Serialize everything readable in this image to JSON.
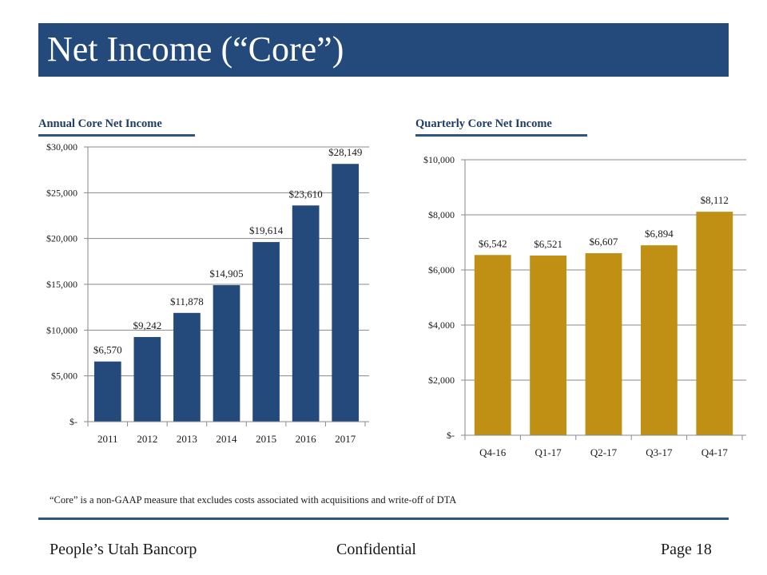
{
  "page": {
    "title": "Net Income (“Core”)",
    "footnote": "“Core” is a non-GAAP measure that excludes costs associated with acquisitions and write-off of DTA",
    "footer": {
      "company": "People’s Utah Bancorp",
      "classification": "Confidential",
      "page_label": "Page 18"
    },
    "colors": {
      "title_bar": "#234a7b",
      "annual_bars": "#234a7b",
      "quarterly_bars": "#bf9013",
      "rule": "#2e5580"
    }
  },
  "chart_data": [
    {
      "type": "bar",
      "title": "Annual  Core Net Income",
      "categories": [
        "2011",
        "2012",
        "2013",
        "2014",
        "2015",
        "2016",
        "2017"
      ],
      "values": [
        6570,
        9242,
        11878,
        14905,
        19614,
        23610,
        28149
      ],
      "data_labels": [
        "$6,570",
        "$9,242",
        "$11,878",
        "$14,905",
        "$19,614",
        "$23,610",
        "$28,149"
      ],
      "xlabel": "",
      "ylabel": "",
      "ylim": [
        0,
        30000
      ],
      "yticks": [
        0,
        5000,
        10000,
        15000,
        20000,
        25000,
        30000
      ],
      "ytick_labels": [
        "$-",
        "$5,000",
        "$10,000",
        "$15,000",
        "$20,000",
        "$25,000",
        "$30,000"
      ],
      "grid": true,
      "legend": "none",
      "color": "#234a7b"
    },
    {
      "type": "bar",
      "title": "Quarterly Core Net Income",
      "categories": [
        "Q4-16",
        "Q1-17",
        "Q2-17",
        "Q3-17",
        "Q4-17"
      ],
      "values": [
        6542,
        6521,
        6607,
        6894,
        8112
      ],
      "data_labels": [
        "$6,542",
        "$6,521",
        "$6,607",
        "$6,894",
        "$8,112"
      ],
      "xlabel": "",
      "ylabel": "",
      "ylim": [
        0,
        10000
      ],
      "yticks": [
        0,
        2000,
        4000,
        6000,
        8000,
        10000
      ],
      "ytick_labels": [
        "$-",
        "$2,000",
        "$4,000",
        "$6,000",
        "$8,000",
        "$10,000"
      ],
      "grid": true,
      "legend": "none",
      "color": "#bf9013"
    }
  ]
}
